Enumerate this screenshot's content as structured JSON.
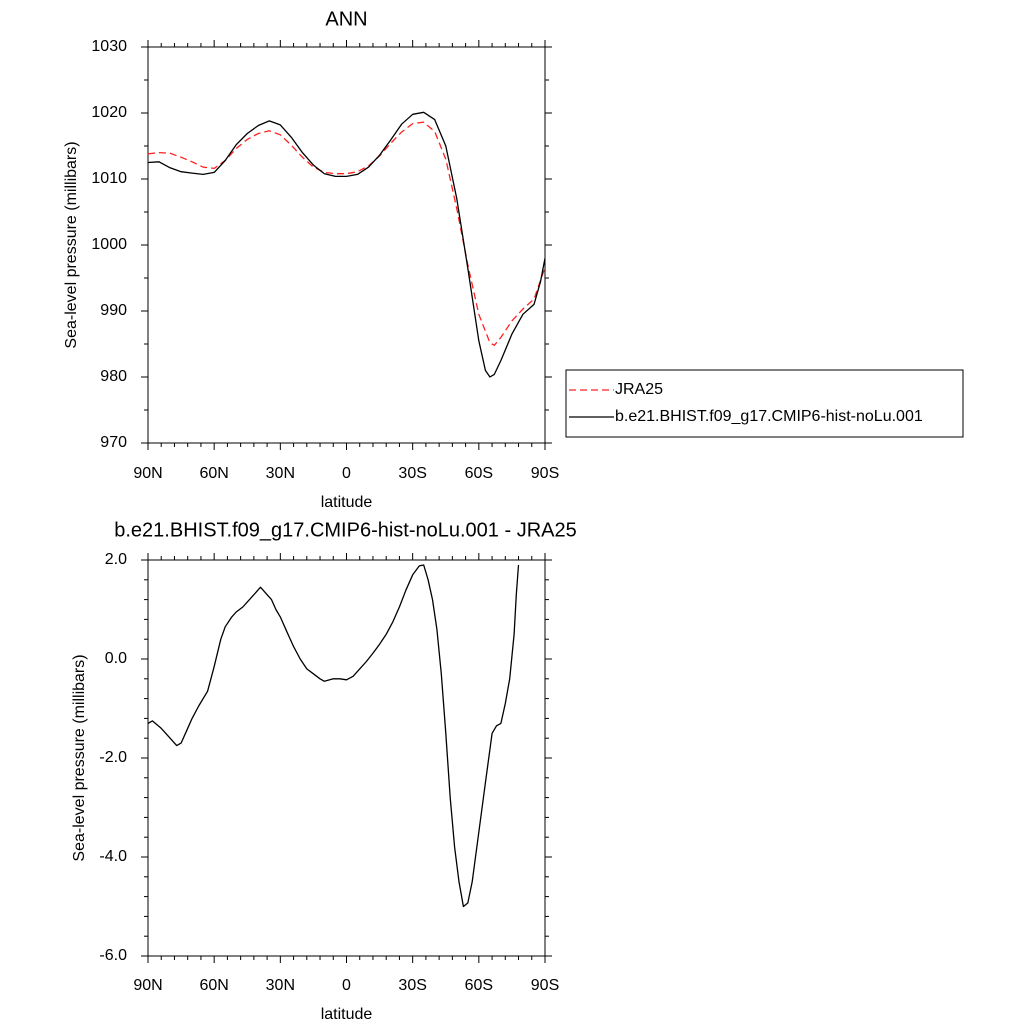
{
  "chart_data": [
    {
      "type": "line",
      "title": "ANN",
      "xlabel": "latitude",
      "ylabel": "Sea-level pressure (millibars)",
      "xlim": [
        -90,
        90
      ],
      "ylim": [
        970,
        1030
      ],
      "x_ticks": [
        {
          "value": -90,
          "label": "90N"
        },
        {
          "value": -60,
          "label": "60N"
        },
        {
          "value": -30,
          "label": "30N"
        },
        {
          "value": 0,
          "label": "0"
        },
        {
          "value": 30,
          "label": "30S"
        },
        {
          "value": 60,
          "label": "60S"
        },
        {
          "value": 90,
          "label": "90S"
        }
      ],
      "y_ticks": [
        {
          "value": 970,
          "label": "970"
        },
        {
          "value": 980,
          "label": "980"
        },
        {
          "value": 990,
          "label": "990"
        },
        {
          "value": 1000,
          "label": "1000"
        },
        {
          "value": 1010,
          "label": "1010"
        },
        {
          "value": 1020,
          "label": "1020"
        },
        {
          "value": 1030,
          "label": "1030"
        }
      ],
      "legend": {
        "position": "right",
        "entries": [
          "JRA25",
          "b.e21.BHIST.f09_g17.CMIP6-hist-noLu.001"
        ]
      },
      "series": [
        {
          "name": "JRA25",
          "color": "#ff2020",
          "dash": "dashed",
          "points": [
            [
              -90,
              1013.8
            ],
            [
              -85,
              1014.0
            ],
            [
              -80,
              1013.9
            ],
            [
              -75,
              1013.3
            ],
            [
              -70,
              1012.6
            ],
            [
              -65,
              1011.8
            ],
            [
              -60,
              1011.6
            ],
            [
              -55,
              1012.8
            ],
            [
              -50,
              1014.6
            ],
            [
              -45,
              1016.0
            ],
            [
              -40,
              1016.9
            ],
            [
              -35,
              1017.3
            ],
            [
              -30,
              1016.7
            ],
            [
              -25,
              1015.1
            ],
            [
              -20,
              1013.3
            ],
            [
              -15,
              1011.8
            ],
            [
              -10,
              1011.0
            ],
            [
              -5,
              1010.8
            ],
            [
              0,
              1010.8
            ],
            [
              5,
              1011.1
            ],
            [
              10,
              1012.0
            ],
            [
              15,
              1013.5
            ],
            [
              20,
              1015.4
            ],
            [
              25,
              1017.1
            ],
            [
              30,
              1018.4
            ],
            [
              35,
              1018.6
            ],
            [
              40,
              1017.2
            ],
            [
              45,
              1013.0
            ],
            [
              50,
              1005.5
            ],
            [
              55,
              997.0
            ],
            [
              60,
              989.5
            ],
            [
              65,
              985.2
            ],
            [
              67,
              984.8
            ],
            [
              70,
              986.0
            ],
            [
              75,
              988.5
            ],
            [
              80,
              990.3
            ],
            [
              85,
              991.8
            ],
            [
              90,
              996.6
            ]
          ]
        },
        {
          "name": "b.e21.BHIST.f09_g17.CMIP6-hist-noLu.001",
          "color": "#000000",
          "dash": "solid",
          "points": [
            [
              -90,
              1012.5
            ],
            [
              -85,
              1012.6
            ],
            [
              -80,
              1011.7
            ],
            [
              -75,
              1011.1
            ],
            [
              -70,
              1010.9
            ],
            [
              -65,
              1010.7
            ],
            [
              -60,
              1011.0
            ],
            [
              -55,
              1012.8
            ],
            [
              -50,
              1015.2
            ],
            [
              -45,
              1016.9
            ],
            [
              -40,
              1018.1
            ],
            [
              -35,
              1018.8
            ],
            [
              -30,
              1018.2
            ],
            [
              -25,
              1016.3
            ],
            [
              -20,
              1014.0
            ],
            [
              -15,
              1012.1
            ],
            [
              -10,
              1010.8
            ],
            [
              -5,
              1010.4
            ],
            [
              0,
              1010.4
            ],
            [
              5,
              1010.7
            ],
            [
              10,
              1011.8
            ],
            [
              15,
              1013.6
            ],
            [
              20,
              1015.9
            ],
            [
              25,
              1018.3
            ],
            [
              30,
              1019.8
            ],
            [
              35,
              1020.1
            ],
            [
              40,
              1019.0
            ],
            [
              45,
              1015.0
            ],
            [
              50,
              1007.0
            ],
            [
              55,
              996.5
            ],
            [
              60,
              985.5
            ],
            [
              63,
              981.0
            ],
            [
              65,
              980.0
            ],
            [
              67,
              980.4
            ],
            [
              70,
              982.5
            ],
            [
              75,
              986.5
            ],
            [
              80,
              989.5
            ],
            [
              85,
              991.0
            ],
            [
              88,
              994.5
            ],
            [
              90,
              998.0
            ]
          ]
        }
      ]
    },
    {
      "type": "line",
      "title": "b.e21.BHIST.f09_g17.CMIP6-hist-noLu.001 - JRA25",
      "xlabel": "latitude",
      "ylabel": "Sea-level pressure (millibars)",
      "xlim": [
        -90,
        90
      ],
      "ylim": [
        -6,
        2
      ],
      "x_ticks": [
        {
          "value": -90,
          "label": "90N"
        },
        {
          "value": -60,
          "label": "60N"
        },
        {
          "value": -30,
          "label": "30N"
        },
        {
          "value": 0,
          "label": "0"
        },
        {
          "value": 30,
          "label": "30S"
        },
        {
          "value": 60,
          "label": "60S"
        },
        {
          "value": 90,
          "label": "90S"
        }
      ],
      "y_ticks": [
        {
          "value": -6,
          "label": "-6.0"
        },
        {
          "value": -4,
          "label": "-4.0"
        },
        {
          "value": -2,
          "label": "-2.0"
        },
        {
          "value": 0,
          "label": "0.0"
        },
        {
          "value": 2,
          "label": "2.0"
        }
      ],
      "series": [
        {
          "color": "#000000",
          "dash": "solid",
          "points": [
            [
              -90,
              -1.3
            ],
            [
              -88,
              -1.25
            ],
            [
              -84,
              -1.4
            ],
            [
              -80,
              -1.6
            ],
            [
              -77,
              -1.75
            ],
            [
              -75,
              -1.7
            ],
            [
              -72,
              -1.4
            ],
            [
              -70,
              -1.2
            ],
            [
              -67,
              -0.95
            ],
            [
              -63,
              -0.65
            ],
            [
              -60,
              -0.15
            ],
            [
              -57,
              0.4
            ],
            [
              -55,
              0.65
            ],
            [
              -52,
              0.85
            ],
            [
              -50,
              0.95
            ],
            [
              -47,
              1.05
            ],
            [
              -44,
              1.2
            ],
            [
              -41,
              1.35
            ],
            [
              -39,
              1.45
            ],
            [
              -36,
              1.3
            ],
            [
              -34,
              1.2
            ],
            [
              -32,
              1.0
            ],
            [
              -30,
              0.85
            ],
            [
              -27,
              0.55
            ],
            [
              -24,
              0.25
            ],
            [
              -21,
              0.0
            ],
            [
              -18,
              -0.2
            ],
            [
              -15,
              -0.3
            ],
            [
              -12,
              -0.4
            ],
            [
              -10,
              -0.45
            ],
            [
              -6,
              -0.4
            ],
            [
              -3,
              -0.4
            ],
            [
              0,
              -0.42
            ],
            [
              3,
              -0.35
            ],
            [
              6,
              -0.2
            ],
            [
              9,
              -0.05
            ],
            [
              12,
              0.12
            ],
            [
              15,
              0.3
            ],
            [
              18,
              0.5
            ],
            [
              21,
              0.75
            ],
            [
              24,
              1.05
            ],
            [
              27,
              1.4
            ],
            [
              30,
              1.7
            ],
            [
              33,
              1.88
            ],
            [
              35,
              1.9
            ],
            [
              37,
              1.6
            ],
            [
              39,
              1.2
            ],
            [
              41,
              0.6
            ],
            [
              43,
              -0.3
            ],
            [
              45,
              -1.5
            ],
            [
              47,
              -2.8
            ],
            [
              49,
              -3.8
            ],
            [
              51,
              -4.5
            ],
            [
              53,
              -5.0
            ],
            [
              55,
              -4.93
            ],
            [
              57,
              -4.5
            ],
            [
              60,
              -3.5
            ],
            [
              63,
              -2.5
            ],
            [
              66,
              -1.5
            ],
            [
              68,
              -1.35
            ],
            [
              70,
              -1.3
            ],
            [
              72,
              -0.9
            ],
            [
              74,
              -0.4
            ],
            [
              76,
              0.5
            ],
            [
              77,
              1.3
            ],
            [
              78,
              1.9
            ]
          ]
        }
      ]
    }
  ]
}
